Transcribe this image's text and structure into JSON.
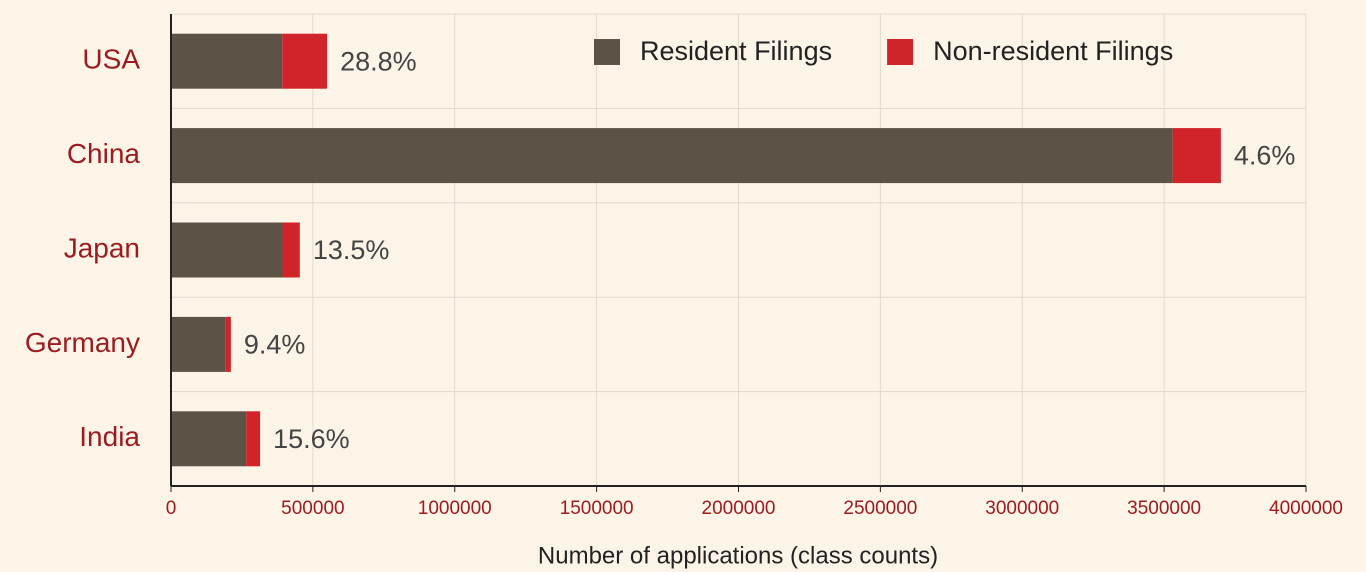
{
  "chart_data": {
    "type": "stacked_barh",
    "categories": [
      "USA",
      "China",
      "Japan",
      "Germany",
      "India"
    ],
    "series": [
      {
        "name": "Resident Filings",
        "color": "#5c5346",
        "values": [
          392000,
          3530000,
          393000,
          191000,
          265000
        ]
      },
      {
        "name": "Non-resident Filings",
        "color": "#d0232a",
        "values": [
          158000,
          170000,
          61000,
          20000,
          49000
        ]
      }
    ],
    "bar_labels": [
      "28.8%",
      "4.6%",
      "13.5%",
      "9.4%",
      "15.6%"
    ],
    "xlabel": "Number of applications (class counts)",
    "xlim": [
      0,
      4000000
    ],
    "xticks": [
      0,
      500000,
      1000000,
      1500000,
      2000000,
      2500000,
      3000000,
      3500000,
      4000000
    ],
    "grid": true,
    "legend": "top-right"
  }
}
